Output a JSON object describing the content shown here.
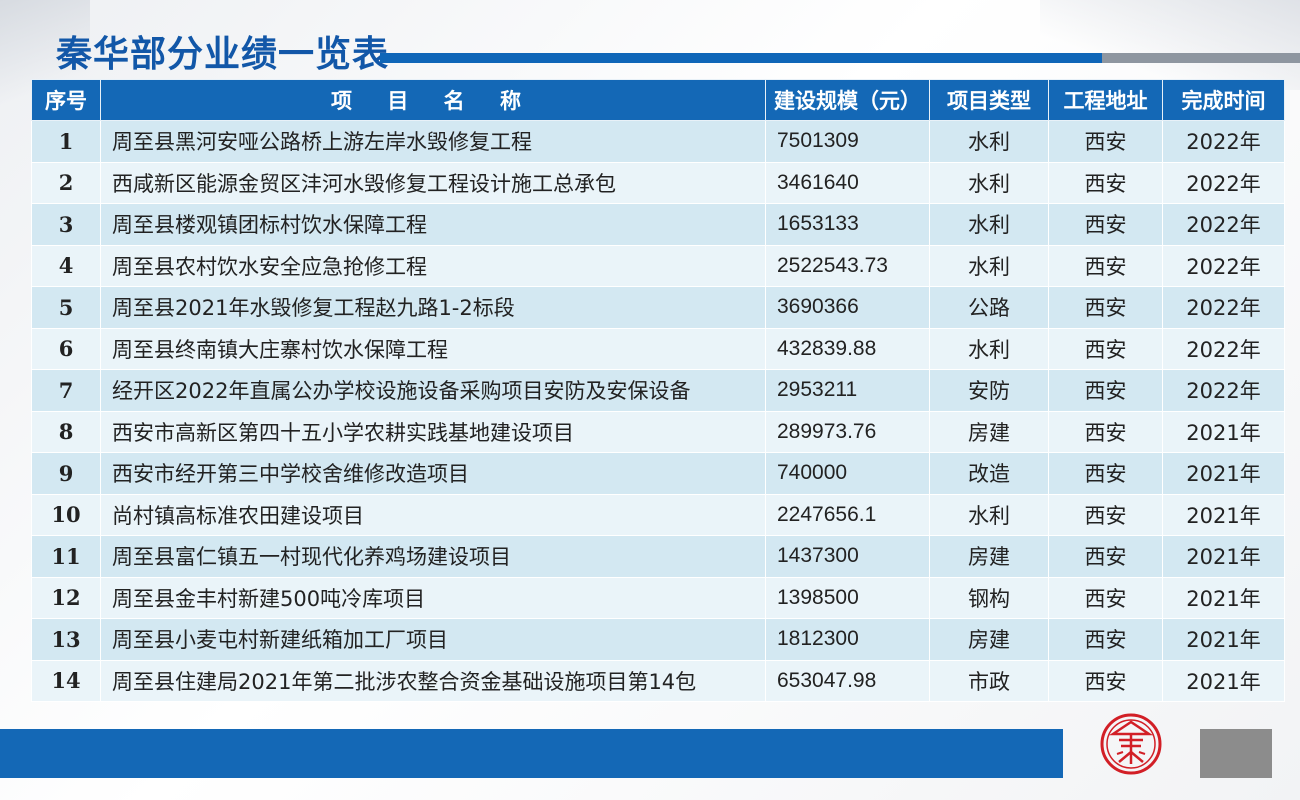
{
  "title": "秦华部分业绩一览表",
  "table": {
    "headers": {
      "seq": "序号",
      "name": "项 目 名 称",
      "amount": "建设规模（元）",
      "type": "项目类型",
      "location": "工程地址",
      "year": "完成时间"
    },
    "rows": [
      {
        "seq": "1",
        "name": "周至县黑河安哑公路桥上游左岸水毁修复工程",
        "amount": "7501309",
        "type": "水利",
        "location": "西安",
        "year": "2022年"
      },
      {
        "seq": "2",
        "name": "西咸新区能源金贸区沣河水毁修复工程设计施工总承包",
        "amount": "3461640",
        "type": "水利",
        "location": "西安",
        "year": "2022年"
      },
      {
        "seq": "3",
        "name": "周至县楼观镇团标村饮水保障工程",
        "amount": "1653133",
        "type": "水利",
        "location": "西安",
        "year": "2022年"
      },
      {
        "seq": "4",
        "name": "周至县农村饮水安全应急抢修工程",
        "amount": "2522543.73",
        "type": "水利",
        "location": "西安",
        "year": "2022年"
      },
      {
        "seq": "5",
        "name": "周至县2021年水毁修复工程赵九路1-2标段",
        "amount": "3690366",
        "type": "公路",
        "location": "西安",
        "year": "2022年"
      },
      {
        "seq": "6",
        "name": "周至县终南镇大庄寨村饮水保障工程",
        "amount": "432839.88",
        "type": "水利",
        "location": "西安",
        "year": "2022年"
      },
      {
        "seq": "7",
        "name": "经开区2022年直属公办学校设施设备采购项目安防及安保设备",
        "amount": "2953211",
        "type": "安防",
        "location": "西安",
        "year": "2022年"
      },
      {
        "seq": "8",
        "name": "西安市高新区第四十五小学农耕实践基地建设项目",
        "amount": "289973.76",
        "type": "房建",
        "location": "西安",
        "year": "2021年"
      },
      {
        "seq": "9",
        "name": "西安市经开第三中学校舍维修改造项目",
        "amount": "740000",
        "type": "改造",
        "location": "西安",
        "year": "2021年"
      },
      {
        "seq": "10",
        "name": "尚村镇高标准农田建设项目",
        "amount": "2247656.1",
        "type": "水利",
        "location": "西安",
        "year": "2021年"
      },
      {
        "seq": "11",
        "name": "周至县富仁镇五一村现代化养鸡场建设项目",
        "amount": "1437300",
        "type": "房建",
        "location": "西安",
        "year": "2021年"
      },
      {
        "seq": "12",
        "name": "周至县金丰村新建500吨冷库项目",
        "amount": "1398500",
        "type": "钢构",
        "location": "西安",
        "year": "2021年"
      },
      {
        "seq": "13",
        "name": "周至县小麦屯村新建纸箱加工厂项目",
        "amount": "1812300",
        "type": "房建",
        "location": "西安",
        "year": "2021年"
      },
      {
        "seq": "14",
        "name": "周至县住建局2021年第二批涉农整合资金基础设施项目第14包",
        "amount": "653047.98",
        "type": "市政",
        "location": "西安",
        "year": "2021年"
      }
    ]
  },
  "colors": {
    "primary_blue": "#1468b6",
    "row_dark": "#d3e8f2",
    "row_light": "#eaf4f9",
    "logo_red": "#d21f26",
    "footer_gray": "#8c8c8c"
  },
  "logo": {
    "icon": "qinhua-seal-icon",
    "text": "秦"
  }
}
